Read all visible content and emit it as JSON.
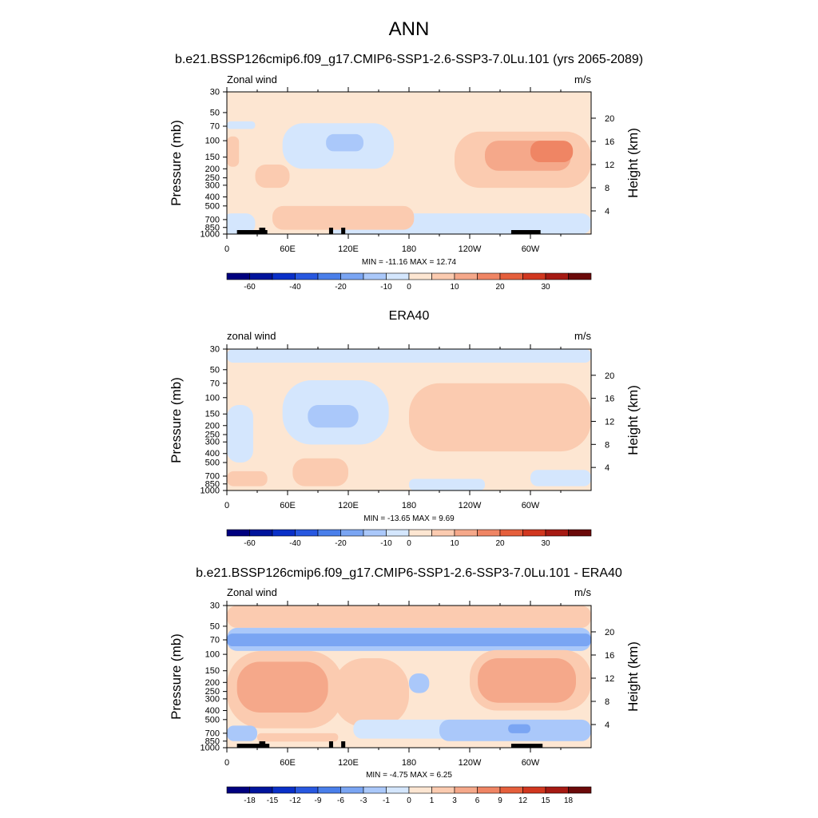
{
  "header": {
    "title": "ANN"
  },
  "colors": {
    "cmap": [
      "#00007f",
      "#00149c",
      "#0a30c8",
      "#2858e0",
      "#4a7fea",
      "#7aa5f3",
      "#aac8fa",
      "#d4e6fd",
      "#fde6d2",
      "#fbcbb0",
      "#f5a88a",
      "#ef8564",
      "#e55f3c",
      "#d1371f",
      "#a61a13",
      "#6b0a0a"
    ]
  },
  "chart_data": [
    {
      "type": "heatmap",
      "title": "b.e21.BSSP126cmip6.f09_g17.CMIP6-SSP1-2.6-SSP3-7.0Lu.101 (yrs 2065-2089)",
      "left_label": "Zonal wind",
      "units": "m/s",
      "ylabel": "Pressure (mb)",
      "y2label": "Height (km)",
      "x_ticks": [
        "0",
        "60E",
        "120E",
        "180",
        "120W",
        "60W"
      ],
      "x_tick_values": [
        0,
        60,
        120,
        180,
        240,
        300
      ],
      "xlim": [
        0,
        360
      ],
      "y_ticks": [
        "30",
        "50",
        "70",
        "100",
        "150",
        "200",
        "250",
        "300",
        "400",
        "500",
        "700",
        "850",
        "1000"
      ],
      "y_tick_values": [
        30,
        50,
        70,
        100,
        150,
        200,
        250,
        300,
        400,
        500,
        700,
        850,
        1000
      ],
      "ylim": [
        1000,
        30
      ],
      "y2_ticks": [
        "20",
        "16",
        "12",
        "8",
        "4"
      ],
      "y2_tick_values": [
        20,
        16,
        12,
        8,
        4
      ],
      "stats": "MIN = -11.16  MAX =  12.74",
      "min": -11.16,
      "max": 12.74,
      "background_level": 8,
      "colorbar_labels": [
        "-60",
        "-40",
        "-20",
        "-10",
        "0",
        "10",
        "20",
        "30"
      ],
      "colorbar_label_edges": [
        1,
        3,
        5,
        7,
        8,
        10,
        12,
        14
      ],
      "regions": [
        {
          "lon": [
            55,
            165
          ],
          "p": [
            65,
            200
          ],
          "level": 7
        },
        {
          "lon": [
            98,
            135
          ],
          "p": [
            85,
            130
          ],
          "level": 6
        },
        {
          "lon": [
            0,
            28
          ],
          "p": [
            62,
            75
          ],
          "level": 7
        },
        {
          "lon": [
            -5,
            28
          ],
          "p": [
            600,
            1000
          ],
          "level": 7
        },
        {
          "lon": [
            100,
            360
          ],
          "p": [
            600,
            1000
          ],
          "level": 7
        },
        {
          "lon": [
            225,
            360
          ],
          "p": [
            80,
            320
          ],
          "level": 9
        },
        {
          "lon": [
            255,
            340
          ],
          "p": [
            100,
            210
          ],
          "level": 10
        },
        {
          "lon": [
            300,
            342
          ],
          "p": [
            100,
            170
          ],
          "level": 11
        },
        {
          "lon": [
            0,
            12
          ],
          "p": [
            90,
            190
          ],
          "level": 9
        },
        {
          "lon": [
            28,
            62
          ],
          "p": [
            180,
            320
          ],
          "level": 9
        },
        {
          "lon": [
            45,
            185
          ],
          "p": [
            500,
            900
          ],
          "level": 9
        }
      ],
      "topo_bars": [
        [
          10,
          40
        ],
        [
          32,
          38
        ],
        [
          101,
          105
        ],
        [
          113,
          117
        ],
        [
          281,
          310
        ]
      ]
    },
    {
      "type": "heatmap",
      "title": "ERA40",
      "left_label": "zonal wind",
      "units": "m/s",
      "ylabel": "Pressure (mb)",
      "y2label": "Height (km)",
      "x_ticks": [
        "0",
        "60E",
        "120E",
        "180",
        "120W",
        "60W"
      ],
      "x_tick_values": [
        0,
        60,
        120,
        180,
        240,
        300
      ],
      "xlim": [
        0,
        360
      ],
      "y_ticks": [
        "30",
        "50",
        "70",
        "100",
        "150",
        "200",
        "250",
        "300",
        "400",
        "500",
        "700",
        "850",
        "1000"
      ],
      "y_tick_values": [
        30,
        50,
        70,
        100,
        150,
        200,
        250,
        300,
        400,
        500,
        700,
        850,
        1000
      ],
      "ylim": [
        1000,
        30
      ],
      "y2_ticks": [
        "20",
        "16",
        "12",
        "8",
        "4"
      ],
      "y2_tick_values": [
        20,
        16,
        12,
        8,
        4
      ],
      "stats": "MIN = -13.65  MAX =   9.69",
      "min": -13.65,
      "max": 9.69,
      "background_level": 8,
      "colorbar_labels": [
        "-60",
        "-40",
        "-20",
        "-10",
        "0",
        "10",
        "20",
        "30"
      ],
      "colorbar_label_edges": [
        1,
        3,
        5,
        7,
        8,
        10,
        12,
        14
      ],
      "regions": [
        {
          "lon": [
            0,
            360
          ],
          "p": [
            30,
            42
          ],
          "level": 7
        },
        {
          "lon": [
            55,
            160
          ],
          "p": [
            65,
            320
          ],
          "level": 7
        },
        {
          "lon": [
            0,
            26
          ],
          "p": [
            120,
            500
          ],
          "level": 7
        },
        {
          "lon": [
            80,
            130
          ],
          "p": [
            120,
            210
          ],
          "level": 6
        },
        {
          "lon": [
            180,
            255
          ],
          "p": [
            750,
            1000
          ],
          "level": 7
        },
        {
          "lon": [
            300,
            360
          ],
          "p": [
            600,
            900
          ],
          "level": 7
        },
        {
          "lon": [
            180,
            360
          ],
          "p": [
            70,
            380
          ],
          "level": 9
        },
        {
          "lon": [
            0,
            40
          ],
          "p": [
            620,
            900
          ],
          "level": 9
        },
        {
          "lon": [
            65,
            120
          ],
          "p": [
            450,
            900
          ],
          "level": 9
        }
      ],
      "topo_bars": []
    },
    {
      "type": "heatmap",
      "title": "b.e21.BSSP126cmip6.f09_g17.CMIP6-SSP1-2.6-SSP3-7.0Lu.101 - ERA40",
      "left_label": "Zonal wind",
      "units": "m/s",
      "ylabel": "Pressure (mb)",
      "y2label": "Height (km)",
      "x_ticks": [
        "0",
        "60E",
        "120E",
        "180",
        "120W",
        "60W"
      ],
      "x_tick_values": [
        0,
        60,
        120,
        180,
        240,
        300
      ],
      "xlim": [
        0,
        360
      ],
      "y_ticks": [
        "30",
        "50",
        "70",
        "100",
        "150",
        "200",
        "250",
        "300",
        "400",
        "500",
        "700",
        "850",
        "1000"
      ],
      "y_tick_values": [
        30,
        50,
        70,
        100,
        150,
        200,
        250,
        300,
        400,
        500,
        700,
        850,
        1000
      ],
      "ylim": [
        1000,
        30
      ],
      "y2_ticks": [
        "20",
        "16",
        "12",
        "8",
        "4"
      ],
      "y2_tick_values": [
        20,
        16,
        12,
        8,
        4
      ],
      "stats": "MIN =  -4.75  MAX =   6.25",
      "min": -4.75,
      "max": 6.25,
      "background_level": 8,
      "colorbar_labels": [
        "-18",
        "-15",
        "-12",
        "-9",
        "-6",
        "-3",
        "-1",
        "0",
        "1",
        "3",
        "6",
        "9",
        "12",
        "15",
        "18"
      ],
      "colorbar_label_edges": [
        1,
        2,
        3,
        4,
        5,
        6,
        7,
        8,
        9,
        10,
        11,
        12,
        13,
        14,
        15
      ],
      "regions": [
        {
          "lon": [
            0,
            360
          ],
          "p": [
            30,
            52
          ],
          "level": 9
        },
        {
          "lon": [
            0,
            360
          ],
          "p": [
            52,
            92
          ],
          "level": 6
        },
        {
          "lon": [
            0,
            360
          ],
          "p": [
            60,
            82
          ],
          "level": 5
        },
        {
          "lon": [
            0,
            115
          ],
          "p": [
            92,
            620
          ],
          "level": 9
        },
        {
          "lon": [
            10,
            100
          ],
          "p": [
            120,
            420
          ],
          "level": 10
        },
        {
          "lon": [
            105,
            180
          ],
          "p": [
            110,
            600
          ],
          "level": 9
        },
        {
          "lon": [
            240,
            360
          ],
          "p": [
            90,
            400
          ],
          "level": 9
        },
        {
          "lon": [
            248,
            345
          ],
          "p": [
            110,
            330
          ],
          "level": 10
        },
        {
          "lon": [
            180,
            200
          ],
          "p": [
            160,
            260
          ],
          "level": 6
        },
        {
          "lon": [
            125,
            240
          ],
          "p": [
            500,
            800
          ],
          "level": 7
        },
        {
          "lon": [
            210,
            360
          ],
          "p": [
            500,
            850
          ],
          "level": 6
        },
        {
          "lon": [
            278,
            300
          ],
          "p": [
            560,
            700
          ],
          "level": 5
        },
        {
          "lon": [
            0,
            30
          ],
          "p": [
            580,
            850
          ],
          "level": 6
        },
        {
          "lon": [
            30,
            110
          ],
          "p": [
            700,
            860
          ],
          "level": 9
        }
      ],
      "topo_bars": [
        [
          10,
          42
        ],
        [
          32,
          38
        ],
        [
          101,
          105
        ],
        [
          113,
          117
        ],
        [
          281,
          312
        ]
      ]
    }
  ]
}
